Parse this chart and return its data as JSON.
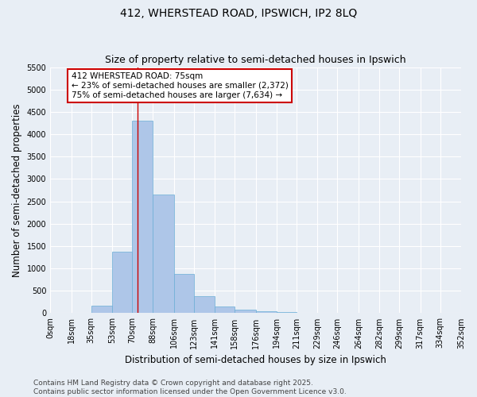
{
  "title_line1": "412, WHERSTEAD ROAD, IPSWICH, IP2 8LQ",
  "title_line2": "Size of property relative to semi-detached houses in Ipswich",
  "xlabel": "Distribution of semi-detached houses by size in Ipswich",
  "ylabel": "Number of semi-detached properties",
  "bar_color": "#aec6e8",
  "bar_edge_color": "#6aaed6",
  "background_color": "#e8eef5",
  "grid_color": "#ffffff",
  "annotation_line_color": "#cc0000",
  "annotation_box_color": "#cc0000",
  "annotation_text": "412 WHERSTEAD ROAD: 75sqm\n← 23% of semi-detached houses are smaller (2,372)\n75% of semi-detached houses are larger (7,634) →",
  "property_size": 75,
  "bin_labels": [
    "0sqm",
    "18sqm",
    "35sqm",
    "53sqm",
    "70sqm",
    "88sqm",
    "106sqm",
    "123sqm",
    "141sqm",
    "158sqm",
    "176sqm",
    "194sqm",
    "211sqm",
    "229sqm",
    "246sqm",
    "264sqm",
    "282sqm",
    "299sqm",
    "317sqm",
    "334sqm",
    "352sqm"
  ],
  "bin_edges": [
    0,
    18,
    35,
    53,
    70,
    88,
    106,
    123,
    141,
    158,
    176,
    194,
    211,
    229,
    246,
    264,
    282,
    299,
    317,
    334,
    352
  ],
  "bar_heights": [
    0,
    5,
    175,
    1375,
    4300,
    2650,
    875,
    375,
    150,
    80,
    50,
    20,
    10,
    5,
    2,
    1,
    0,
    0,
    0,
    0
  ],
  "ylim": [
    0,
    5500
  ],
  "yticks": [
    0,
    500,
    1000,
    1500,
    2000,
    2500,
    3000,
    3500,
    4000,
    4500,
    5000,
    5500
  ],
  "footer": "Contains HM Land Registry data © Crown copyright and database right 2025.\nContains public sector information licensed under the Open Government Licence v3.0.",
  "title_fontsize": 10,
  "subtitle_fontsize": 9,
  "axis_label_fontsize": 8.5,
  "tick_fontsize": 7,
  "footer_fontsize": 6.5,
  "annot_fontsize": 7.5
}
